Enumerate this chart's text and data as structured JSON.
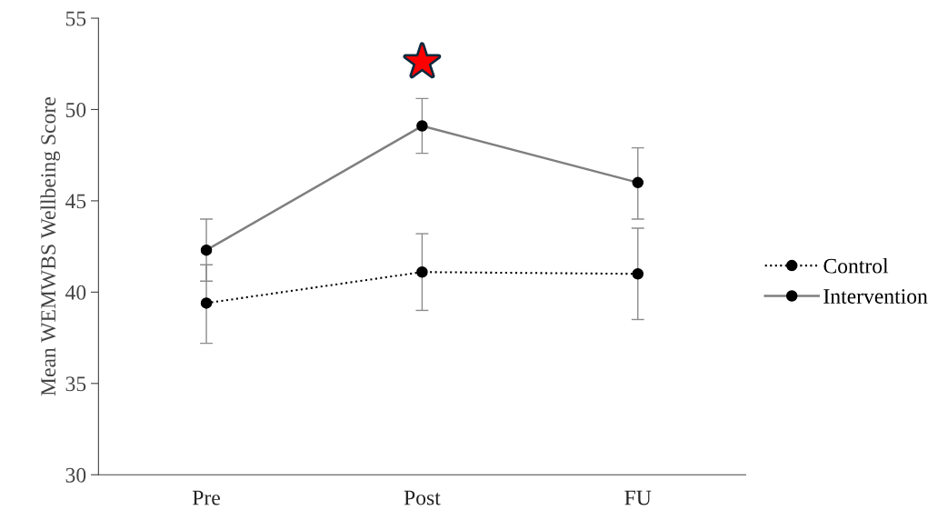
{
  "chart_data": {
    "type": "line",
    "ylabel": "Mean WEMWBS Wellbeing Score",
    "categories": [
      "Pre",
      "Post",
      "FU"
    ],
    "series": [
      {
        "name": "Control",
        "color": "#000000",
        "line_style": "dotted",
        "values": [
          39.4,
          41.1,
          41.0
        ],
        "errors": [
          [
            37.2,
            41.5
          ],
          [
            39.0,
            43.2
          ],
          [
            38.5,
            43.5
          ]
        ]
      },
      {
        "name": "Intervention",
        "color": "#7f7f7f",
        "line_style": "solid",
        "values": [
          42.3,
          49.1,
          46.0
        ],
        "errors": [
          [
            40.6,
            44.0
          ],
          [
            47.6,
            50.6
          ],
          [
            44.0,
            47.9
          ]
        ]
      }
    ],
    "annotations": [
      "★"
    ],
    "ylim": [
      30,
      55
    ],
    "yticks": [
      30,
      35,
      40,
      45,
      50,
      55
    ],
    "marker": "circle",
    "grid": false,
    "legend": "right"
  }
}
